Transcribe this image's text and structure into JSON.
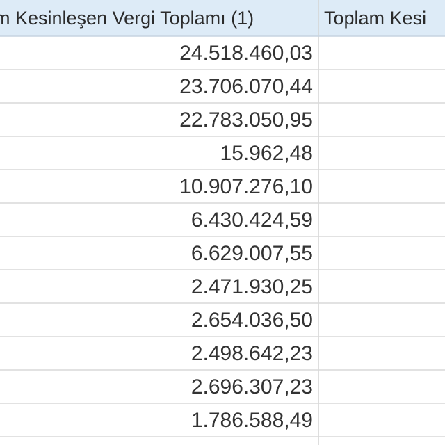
{
  "header": {
    "cells": [
      "m Kesinleşen Vergi Toplamı (1)",
      "Toplam Kesi"
    ]
  },
  "table": {
    "rows": [
      "24.518.460,03",
      "23.706.070,44",
      "22.783.050,95",
      "15.962,48",
      "10.907.276,10",
      "6.430.424,59",
      "6.629.007,55",
      "2.471.930,25",
      "2.654.036,50",
      "2.498.642,23",
      "2.696.307,23",
      "1.786.588,49"
    ]
  }
}
